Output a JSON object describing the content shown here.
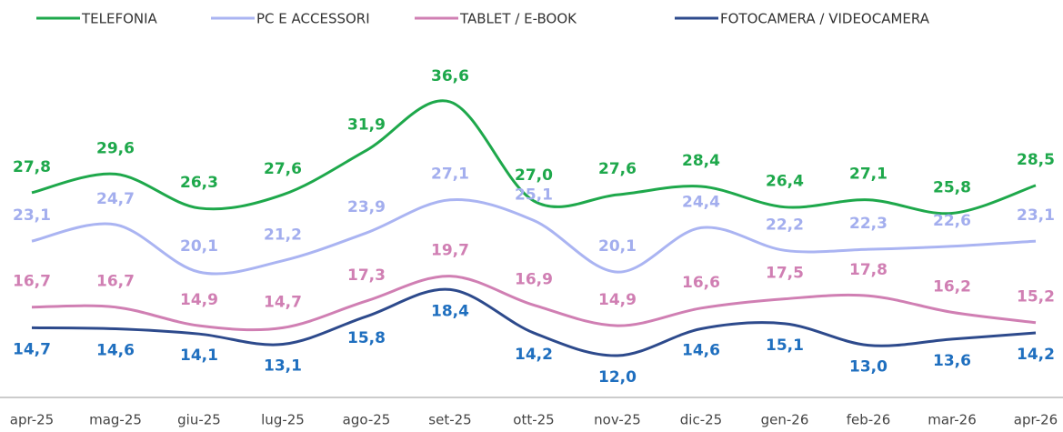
{
  "chart_data": {
    "type": "line",
    "categories": [
      "apr-25",
      "mag-25",
      "giu-25",
      "lug-25",
      "ago-25",
      "set-25",
      "ott-25",
      "nov-25",
      "dic-25",
      "gen-26",
      "feb-26",
      "mar-26",
      "apr-26"
    ],
    "legend": "top",
    "series": [
      {
        "name": "TELEFONIA",
        "color": "#1ea84b",
        "label_color": "#1ea84b",
        "values": [
          27.8,
          29.6,
          26.3,
          27.6,
          31.9,
          36.6,
          27.0,
          27.6,
          28.4,
          26.4,
          27.1,
          25.8,
          28.5
        ],
        "value_labels": [
          "27,8",
          "29,6",
          "26,3",
          "27,6",
          "31,9",
          "36,6",
          "27,0",
          "27,6",
          "28,4",
          "26,4",
          "27,1",
          "25,8",
          "28,5"
        ]
      },
      {
        "name": "PC E ACCESSORI",
        "color": "#aab4f2",
        "label_color": "#a3aeee",
        "values": [
          23.1,
          24.7,
          20.1,
          21.2,
          23.9,
          27.1,
          25.1,
          20.1,
          24.4,
          22.2,
          22.3,
          22.6,
          23.1
        ],
        "value_labels": [
          "23,1",
          "24,7",
          "20,1",
          "21,2",
          "23,9",
          "27,1",
          "25,1",
          "20,1",
          "24,4",
          "22,2",
          "22,3",
          "22,6",
          "23,1"
        ]
      },
      {
        "name": "TABLET / E-BOOK",
        "color": "#d07fb3",
        "label_color": "#d07fb3",
        "values": [
          16.7,
          16.7,
          14.9,
          14.7,
          17.3,
          19.7,
          16.9,
          14.9,
          16.6,
          17.5,
          17.8,
          16.2,
          15.2
        ],
        "value_labels": [
          "16,7",
          "16,7",
          "14,9",
          "14,7",
          "17,3",
          "19,7",
          "16,9",
          "14,9",
          "16,6",
          "17,5",
          "17,8",
          "16,2",
          "15,2"
        ]
      },
      {
        "name": "FOTOCAMERA / VIDEOCAMERA",
        "color": "#2d4a8c",
        "label_color": "#1f6fbf",
        "values": [
          14.7,
          14.6,
          14.1,
          13.1,
          15.8,
          18.4,
          14.2,
          12.0,
          14.6,
          15.1,
          13.0,
          13.6,
          14.2
        ],
        "value_labels": [
          "14,7",
          "14,6",
          "14,1",
          "13,1",
          "15,8",
          "18,4",
          "14,2",
          "12,0",
          "14,6",
          "15,1",
          "13,0",
          "13,6",
          "14,2"
        ]
      }
    ]
  }
}
